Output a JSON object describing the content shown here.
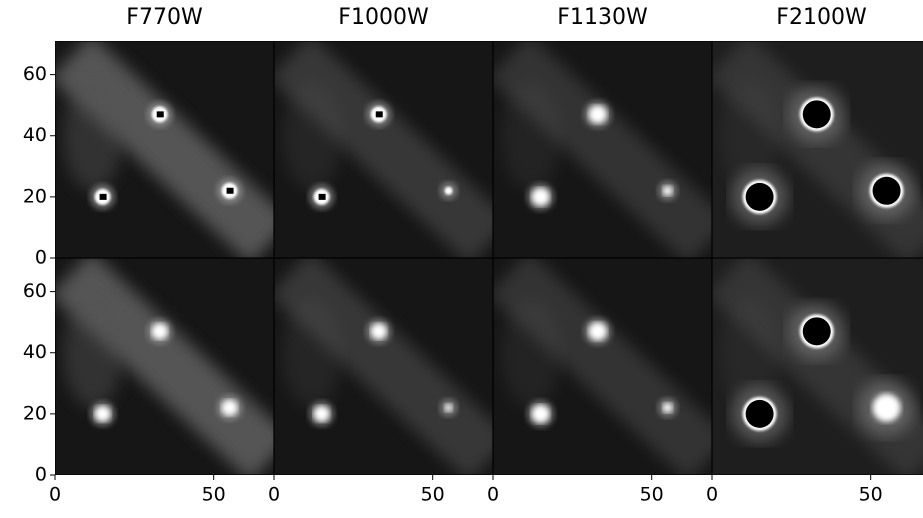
{
  "chart_data": {
    "type": "image_grid",
    "columns": [
      "F770W",
      "F1000W",
      "F1130W",
      "F2100W"
    ],
    "rows": 2,
    "xlim": [
      0,
      69
    ],
    "xticks": [
      0,
      50
    ],
    "ylim": [
      0,
      71
    ],
    "yticks": [
      0,
      20,
      40,
      60
    ]
  }
}
